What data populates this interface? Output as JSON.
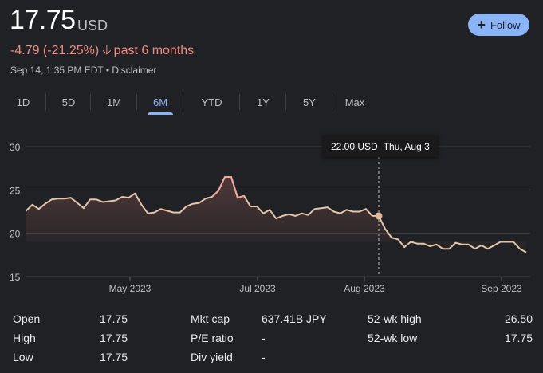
{
  "quote": {
    "price": "17.75",
    "currency": "USD",
    "change": "-4.79 (-21.25%)",
    "change_arrow_icon": "arrow-down-icon",
    "change_period": "past 6 months",
    "timestamp": "Sep 14, 1:35 PM EDT",
    "separator": "•",
    "disclaimer": "Disclaimer",
    "follow_label": "Follow",
    "follow_icon": "plus-icon",
    "colors": {
      "negative": "#f28b82",
      "accent": "#8ab4f8"
    }
  },
  "tabs": [
    {
      "label": "1D",
      "active": false
    },
    {
      "label": "5D",
      "active": false
    },
    {
      "label": "1M",
      "active": false
    },
    {
      "label": "6M",
      "active": true
    },
    {
      "label": "YTD",
      "active": false
    },
    {
      "label": "1Y",
      "active": false
    },
    {
      "label": "5Y",
      "active": false
    },
    {
      "label": "Max",
      "active": false
    }
  ],
  "chart_data": {
    "type": "area",
    "ylim": [
      15,
      30
    ],
    "y_ticks": [
      "30",
      "25",
      "20",
      "15"
    ],
    "x_ticks": [
      "May 2023",
      "Jul 2023",
      "Aug 2023",
      "Sep 2023"
    ],
    "grid": true,
    "values": [
      22.6,
      23.3,
      22.8,
      23.4,
      23.9,
      24.0,
      24.0,
      24.1,
      23.5,
      22.9,
      23.9,
      23.9,
      23.6,
      23.7,
      23.8,
      24.2,
      24.1,
      24.6,
      23.3,
      22.3,
      22.4,
      22.8,
      22.6,
      22.4,
      22.4,
      23.1,
      23.4,
      23.5,
      24.0,
      24.2,
      24.9,
      26.5,
      26.5,
      24.1,
      24.3,
      23.1,
      23.1,
      22.3,
      22.7,
      21.7,
      22.0,
      22.2,
      22.0,
      22.3,
      22.1,
      22.8,
      22.9,
      23.0,
      22.5,
      22.3,
      22.7,
      22.5,
      22.5,
      22.8,
      22.0,
      22.0,
      20.5,
      19.5,
      19.3,
      18.4,
      19.0,
      18.8,
      18.8,
      18.5,
      18.7,
      18.2,
      18.2,
      18.9,
      18.7,
      18.7,
      18.2,
      18.6,
      18.2,
      18.6,
      19.0,
      19.0,
      19.0,
      18.2,
      17.8
    ],
    "tooltip": {
      "value": "22.00 USD",
      "date": "Thu, Aug 3"
    },
    "colors": {
      "line": "#e3c6a8",
      "peak": "#f4a49a",
      "fill": "#f28b82",
      "grid": "#3c4043"
    }
  },
  "stats": [
    {
      "label": "Open",
      "value": "17.75"
    },
    {
      "label": "High",
      "value": "17.75"
    },
    {
      "label": "Low",
      "value": "17.75"
    },
    {
      "label": "Mkt cap",
      "value": "637.41B JPY"
    },
    {
      "label": "P/E ratio",
      "value": "-"
    },
    {
      "label": "Div yield",
      "value": "-"
    },
    {
      "label": "52-wk high",
      "value": "26.50"
    },
    {
      "label": "52-wk low",
      "value": "17.75"
    }
  ]
}
